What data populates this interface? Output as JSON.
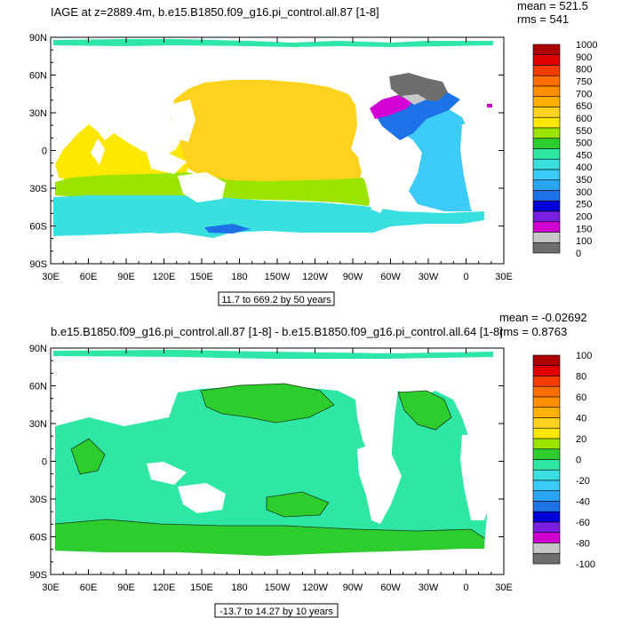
{
  "chart_data": [
    {
      "type": "heatmap",
      "title": "IAGE at z=2889.4m, b.e15.B1850.f09_g16.pi_control.all.87 [1-8]",
      "stats": {
        "mean": "mean = 521.5",
        "rms": "rms = 541"
      },
      "range_label": "11.7 to 669.2 by 50 years",
      "x_ticks": [
        "30E",
        "60E",
        "90E",
        "120E",
        "150E",
        "180",
        "150W",
        "120W",
        "90W",
        "60W",
        "30W",
        "0",
        "30E"
      ],
      "y_ticks": [
        "90N",
        "60N",
        "30N",
        "0",
        "30S",
        "60S",
        "90S"
      ],
      "xlim": [
        30,
        390
      ],
      "ylim": [
        -90,
        90
      ],
      "colorbar_labels": [
        "1000",
        "900",
        "800",
        "750",
        "700",
        "650",
        "600",
        "550",
        "500",
        "450",
        "400",
        "350",
        "300",
        "250",
        "200",
        "150",
        "100",
        "0"
      ],
      "colorbar_colors": [
        "#ad0000",
        "#e00000",
        "#f53b00",
        "#ff6f00",
        "#ff8f00",
        "#ffb000",
        "#ffd21e",
        "#ffe800",
        "#9be400",
        "#2ccd2c",
        "#2ee7a4",
        "#3ae0e0",
        "#3ccaf7",
        "#2aa4f5",
        "#1e72e7",
        "#0000d9",
        "#7a1ee0",
        "#d200d2",
        "#c8c8c8",
        "#6e6e6e"
      ],
      "regions": [
        {
          "name": "arctic-band",
          "color": "#2ee7a4"
        },
        {
          "name": "north-pacific",
          "color": "#ffd21e"
        },
        {
          "name": "indian-ocean",
          "color": "#ffe800"
        },
        {
          "name": "south-pacific",
          "color": "#9be400"
        },
        {
          "name": "southern-ocean",
          "color": "#3ae0e0"
        },
        {
          "name": "atlantic",
          "color": "#3ccaf7"
        },
        {
          "name": "north-atlantic",
          "color": "#1e72e7"
        },
        {
          "name": "labrador",
          "color": "#d200d2"
        },
        {
          "name": "nordic-seas",
          "color": "#6e6e6e"
        }
      ]
    },
    {
      "type": "heatmap",
      "title": "b.e15.B1850.f09_g16.pi_control.all.87 [1-8] - b.e15.B1850.f09_g16.pi_control.all.64 [1-8]",
      "stats": {
        "mean": "mean = -0.02692",
        "rms": "rms = 0.8763"
      },
      "range_label": "-13.7 to 14.27 by 10 years",
      "x_ticks": [
        "30E",
        "60E",
        "90E",
        "120E",
        "150E",
        "180",
        "150W",
        "120W",
        "90W",
        "60W",
        "30W",
        "0",
        "30E"
      ],
      "y_ticks": [
        "90N",
        "60N",
        "30N",
        "0",
        "30S",
        "60S",
        "90S"
      ],
      "xlim": [
        30,
        390
      ],
      "ylim": [
        -90,
        90
      ],
      "colorbar_labels": [
        "100",
        "80",
        "60",
        "40",
        "20",
        "0",
        "-20",
        "-40",
        "-60",
        "-80",
        "-100"
      ],
      "colorbar_colors": [
        "#ad0000",
        "#e00000",
        "#f53b00",
        "#ff6f00",
        "#ff8f00",
        "#ffb000",
        "#ffd21e",
        "#ffe800",
        "#9be400",
        "#2ccd2c",
        "#2ee7a4",
        "#3ae0e0",
        "#3ccaf7",
        "#2aa4f5",
        "#1e72e7",
        "#0000d9",
        "#7a1ee0",
        "#d200d2",
        "#c8c8c8",
        "#6e6e6e"
      ],
      "regions": [
        {
          "name": "positive-areas",
          "color": "#2ccd2c"
        },
        {
          "name": "near-zero-areas",
          "color": "#2ee7a4"
        }
      ]
    }
  ]
}
